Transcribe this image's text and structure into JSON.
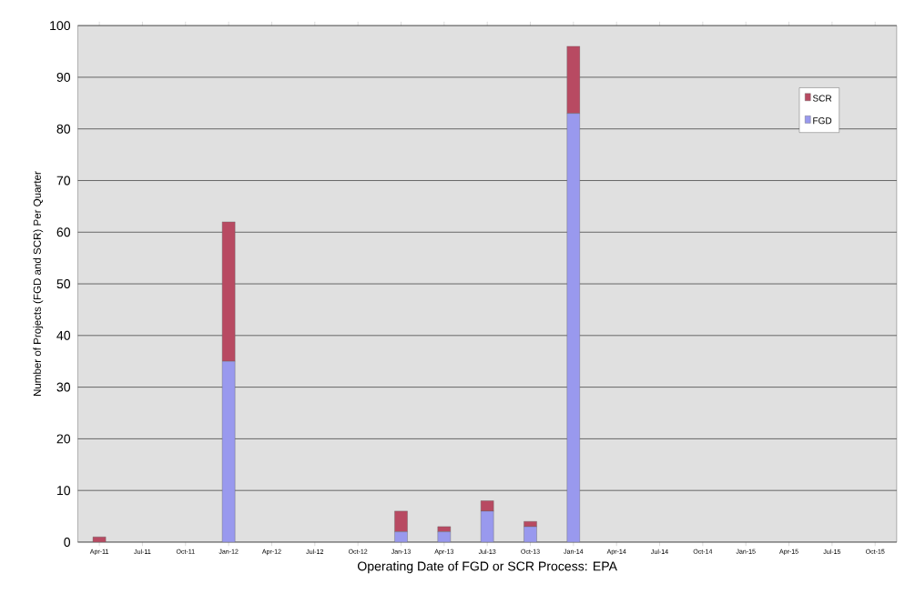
{
  "chart_data": {
    "type": "bar",
    "stacked": true,
    "xlabel": "Operating Date of FGD or SCR Process:  EPA",
    "ylabel": "Number of Projects (FGD and SCR) Per Quarter",
    "categories": [
      "Apr-11",
      "Jul-11",
      "Oct-11",
      "Jan-12",
      "Apr-12",
      "Jul-12",
      "Oct-12",
      "Jan-13",
      "Apr-13",
      "Jul-13",
      "Oct-13",
      "Jan-14",
      "Apr-14",
      "Jul-14",
      "Oct-14",
      "Jan-15",
      "Apr-15",
      "Jul-15",
      "Oct-15"
    ],
    "series": [
      {
        "name": "FGD",
        "color": "#9999ee",
        "values": [
          0,
          0,
          0,
          35,
          0,
          0,
          0,
          2,
          2,
          6,
          3,
          83,
          0,
          0,
          0,
          0,
          0,
          0,
          0
        ]
      },
      {
        "name": "SCR",
        "color": "#b84a62",
        "values": [
          1,
          0,
          0,
          27,
          0,
          0,
          0,
          4,
          1,
          2,
          1,
          13,
          0,
          0,
          0,
          0,
          0,
          0,
          0
        ]
      }
    ],
    "ylim": [
      0,
      100
    ],
    "yticks": [
      0,
      10,
      20,
      30,
      40,
      50,
      60,
      70,
      80,
      90,
      100
    ],
    "grid": "y",
    "legend": "top right"
  }
}
